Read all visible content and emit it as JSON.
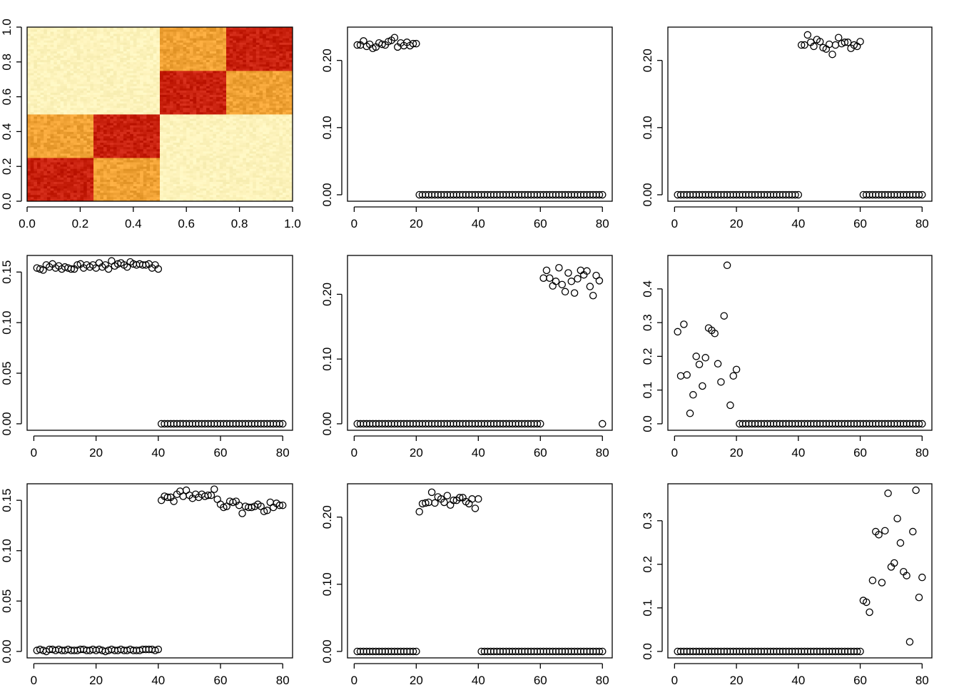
{
  "chart_data": [
    {
      "type": "heatmap",
      "grid_size": [
        80,
        80
      ],
      "blocks": [
        {
          "rows": [
            0.0,
            0.25
          ],
          "cols": [
            0.0,
            0.25
          ],
          "level": "high"
        },
        {
          "rows": [
            0.0,
            0.25
          ],
          "cols": [
            0.25,
            0.5
          ],
          "level": "medium"
        },
        {
          "rows": [
            0.25,
            0.5
          ],
          "cols": [
            0.0,
            0.25
          ],
          "level": "medium"
        },
        {
          "rows": [
            0.25,
            0.5
          ],
          "cols": [
            0.25,
            0.5
          ],
          "level": "high"
        },
        {
          "rows": [
            0.5,
            0.75
          ],
          "cols": [
            0.5,
            0.75
          ],
          "level": "high"
        },
        {
          "rows": [
            0.5,
            0.75
          ],
          "cols": [
            0.75,
            1.0
          ],
          "level": "medium"
        },
        {
          "rows": [
            0.75,
            1.0
          ],
          "cols": [
            0.5,
            0.75
          ],
          "level": "medium"
        },
        {
          "rows": [
            0.75,
            1.0
          ],
          "cols": [
            0.75,
            1.0
          ],
          "level": "high"
        }
      ],
      "colors": {
        "high": "#c8200d",
        "medium": "#f0a235",
        "low": "#fdf3bc"
      },
      "xlim": [
        0,
        1
      ],
      "ylim": [
        0,
        1
      ],
      "xticks": [
        "0.0",
        "0.2",
        "0.4",
        "0.6",
        "0.8",
        "1.0"
      ],
      "yticks": [
        "0.0",
        "0.2",
        "0.4",
        "0.6",
        "0.8",
        "1.0"
      ]
    },
    {
      "type": "scatter",
      "x_range": [
        1,
        80
      ],
      "ylim": [
        0,
        0.24
      ],
      "xticks": [
        "0",
        "20",
        "40",
        "60",
        "80"
      ],
      "yticks": [
        "0.00",
        "0.10",
        "0.20"
      ],
      "y": [
        0.223,
        0.223,
        0.229,
        0.221,
        0.224,
        0.218,
        0.22,
        0.226,
        0.224,
        0.223,
        0.228,
        0.23,
        0.234,
        0.22,
        0.226,
        0.222,
        0.227,
        0.222,
        0.225,
        0.225,
        0,
        0,
        0,
        0,
        0,
        0,
        0,
        0,
        0,
        0,
        0,
        0,
        0,
        0,
        0,
        0,
        0,
        0,
        0,
        0,
        0,
        0,
        0,
        0,
        0,
        0,
        0,
        0,
        0,
        0,
        0,
        0,
        0,
        0,
        0,
        0,
        0,
        0,
        0,
        0,
        0,
        0,
        0,
        0,
        0,
        0,
        0,
        0,
        0,
        0,
        0,
        0,
        0,
        0,
        0,
        0,
        0,
        0,
        0,
        0
      ]
    },
    {
      "type": "scatter",
      "x_range": [
        1,
        80
      ],
      "ylim": [
        0,
        0.24
      ],
      "xticks": [
        "0",
        "20",
        "40",
        "60",
        "80"
      ],
      "yticks": [
        "0.00",
        "0.10",
        "0.20"
      ],
      "y": [
        0,
        0,
        0,
        0,
        0,
        0,
        0,
        0,
        0,
        0,
        0,
        0,
        0,
        0,
        0,
        0,
        0,
        0,
        0,
        0,
        0,
        0,
        0,
        0,
        0,
        0,
        0,
        0,
        0,
        0,
        0,
        0,
        0,
        0,
        0,
        0,
        0,
        0,
        0,
        0,
        0.223,
        0.223,
        0.238,
        0.227,
        0.221,
        0.231,
        0.228,
        0.219,
        0.217,
        0.224,
        0.209,
        0.223,
        0.234,
        0.225,
        0.227,
        0.227,
        0.218,
        0.223,
        0.221,
        0.228,
        0,
        0,
        0,
        0,
        0,
        0,
        0,
        0,
        0,
        0,
        0,
        0,
        0,
        0,
        0,
        0,
        0,
        0,
        0,
        0
      ]
    },
    {
      "type": "scatter",
      "x_range": [
        1,
        80
      ],
      "ylim": [
        0,
        0.16
      ],
      "xticks": [
        "0",
        "20",
        "40",
        "60",
        "80"
      ],
      "yticks": [
        "0.00",
        "0.05",
        "0.10",
        "0.15"
      ],
      "y": [
        0.154,
        0.153,
        0.152,
        0.157,
        0.155,
        0.158,
        0.154,
        0.156,
        0.153,
        0.155,
        0.154,
        0.153,
        0.153,
        0.157,
        0.158,
        0.154,
        0.157,
        0.155,
        0.157,
        0.154,
        0.159,
        0.155,
        0.157,
        0.153,
        0.161,
        0.156,
        0.158,
        0.159,
        0.157,
        0.155,
        0.16,
        0.158,
        0.157,
        0.158,
        0.157,
        0.157,
        0.158,
        0.154,
        0.157,
        0.153,
        0,
        0,
        0,
        0,
        0,
        0,
        0,
        0,
        0,
        0,
        0,
        0,
        0,
        0,
        0,
        0,
        0,
        0,
        0,
        0,
        0,
        0,
        0,
        0,
        0,
        0,
        0,
        0,
        0,
        0,
        0,
        0,
        0,
        0,
        0,
        0,
        0,
        0,
        0,
        0
      ]
    },
    {
      "type": "scatter",
      "x_range": [
        1,
        80
      ],
      "ylim": [
        0,
        0.25
      ],
      "xticks": [
        "0",
        "20",
        "40",
        "60",
        "80"
      ],
      "yticks": [
        "0.00",
        "0.10",
        "0.20"
      ],
      "y": [
        0,
        0,
        0,
        0,
        0,
        0,
        0,
        0,
        0,
        0,
        0,
        0,
        0,
        0,
        0,
        0,
        0,
        0,
        0,
        0,
        0,
        0,
        0,
        0,
        0,
        0,
        0,
        0,
        0,
        0,
        0,
        0,
        0,
        0,
        0,
        0,
        0,
        0,
        0,
        0,
        0,
        0,
        0,
        0,
        0,
        0,
        0,
        0,
        0,
        0,
        0,
        0,
        0,
        0,
        0,
        0,
        0,
        0,
        0,
        0,
        0.225,
        0.237,
        0.225,
        0.213,
        0.22,
        0.241,
        0.215,
        0.204,
        0.233,
        0.22,
        0.202,
        0.224,
        0.237,
        0.23,
        0.236,
        0.212,
        0.198,
        0.229,
        0.221,
        0
      ]
    },
    {
      "type": "scatter",
      "x_range": [
        1,
        80
      ],
      "ylim": [
        0,
        0.48
      ],
      "xticks": [
        "0",
        "20",
        "40",
        "60",
        "80"
      ],
      "yticks": [
        "0.0",
        "0.1",
        "0.2",
        "0.3",
        "0.4"
      ],
      "y": [
        0.273,
        0.142,
        0.295,
        0.145,
        0.031,
        0.086,
        0.2,
        0.176,
        0.112,
        0.196,
        0.284,
        0.277,
        0.268,
        0.178,
        0.124,
        0.32,
        0.47,
        0.055,
        0.142,
        0.161,
        0,
        0,
        0,
        0,
        0,
        0,
        0,
        0,
        0,
        0,
        0,
        0,
        0,
        0,
        0,
        0,
        0,
        0,
        0,
        0,
        0,
        0,
        0,
        0,
        0,
        0,
        0,
        0,
        0,
        0,
        0,
        0,
        0,
        0,
        0,
        0,
        0,
        0,
        0,
        0,
        0,
        0,
        0,
        0,
        0,
        0,
        0,
        0,
        0,
        0,
        0,
        0,
        0,
        0,
        0,
        0,
        0,
        0,
        0,
        0
      ]
    },
    {
      "type": "scatter",
      "x_range": [
        1,
        80
      ],
      "ylim": [
        0,
        0.16
      ],
      "xticks": [
        "0",
        "20",
        "40",
        "60",
        "80"
      ],
      "yticks": [
        "0.00",
        "0.05",
        "0.10",
        "0.15"
      ],
      "y": [
        0.001,
        0.002,
        0.001,
        0.0,
        0.002,
        0.002,
        0.001,
        0.002,
        0.001,
        0.001,
        0.002,
        0.001,
        0.001,
        0.001,
        0.002,
        0.002,
        0.001,
        0.001,
        0.002,
        0.001,
        0.002,
        0.001,
        0.0,
        0.001,
        0.002,
        0.001,
        0.001,
        0.002,
        0.001,
        0.001,
        0.002,
        0.001,
        0.001,
        0.001,
        0.002,
        0.002,
        0.002,
        0.002,
        0.001,
        0.002,
        0.15,
        0.154,
        0.153,
        0.153,
        0.149,
        0.156,
        0.159,
        0.154,
        0.16,
        0.155,
        0.152,
        0.156,
        0.153,
        0.156,
        0.154,
        0.155,
        0.155,
        0.161,
        0.151,
        0.146,
        0.143,
        0.144,
        0.149,
        0.148,
        0.149,
        0.145,
        0.137,
        0.144,
        0.143,
        0.143,
        0.144,
        0.146,
        0.144,
        0.139,
        0.14,
        0.148,
        0.143,
        0.147,
        0.145,
        0.145
      ]
    },
    {
      "type": "scatter",
      "x_range": [
        1,
        80
      ],
      "ylim": [
        0,
        0.24
      ],
      "xticks": [
        "0",
        "20",
        "40",
        "60",
        "80"
      ],
      "yticks": [
        "0.00",
        "0.10",
        "0.20"
      ],
      "y": [
        0,
        0,
        0,
        0,
        0,
        0,
        0,
        0,
        0,
        0,
        0,
        0,
        0,
        0,
        0,
        0,
        0,
        0,
        0,
        0,
        0.208,
        0.22,
        0.221,
        0.222,
        0.237,
        0.221,
        0.23,
        0.227,
        0.222,
        0.232,
        0.218,
        0.225,
        0.225,
        0.229,
        0.229,
        0.223,
        0.22,
        0.227,
        0.213,
        0.227,
        0,
        0,
        0,
        0,
        0,
        0,
        0,
        0,
        0,
        0,
        0,
        0,
        0,
        0,
        0,
        0,
        0,
        0,
        0,
        0,
        0,
        0,
        0,
        0,
        0,
        0,
        0,
        0,
        0,
        0,
        0,
        0,
        0,
        0,
        0,
        0,
        0,
        0,
        0,
        0
      ]
    },
    {
      "type": "scatter",
      "x_range": [
        1,
        80
      ],
      "ylim": [
        0,
        0.37
      ],
      "xticks": [
        "0",
        "20",
        "40",
        "60",
        "80"
      ],
      "yticks": [
        "0.0",
        "0.1",
        "0.2",
        "0.3"
      ],
      "y": [
        0,
        0,
        0,
        0,
        0,
        0,
        0,
        0,
        0,
        0,
        0,
        0,
        0,
        0,
        0,
        0,
        0,
        0,
        0,
        0,
        0,
        0,
        0,
        0,
        0,
        0,
        0,
        0,
        0,
        0,
        0,
        0,
        0,
        0,
        0,
        0,
        0,
        0,
        0,
        0,
        0,
        0,
        0,
        0,
        0,
        0,
        0,
        0,
        0,
        0,
        0,
        0,
        0,
        0,
        0,
        0,
        0,
        0,
        0,
        0,
        0.117,
        0.113,
        0.09,
        0.163,
        0.275,
        0.268,
        0.158,
        0.277,
        0.363,
        0.194,
        0.203,
        0.305,
        0.249,
        0.183,
        0.174,
        0.022,
        0.275,
        0.37,
        0.124,
        0.17
      ]
    }
  ]
}
